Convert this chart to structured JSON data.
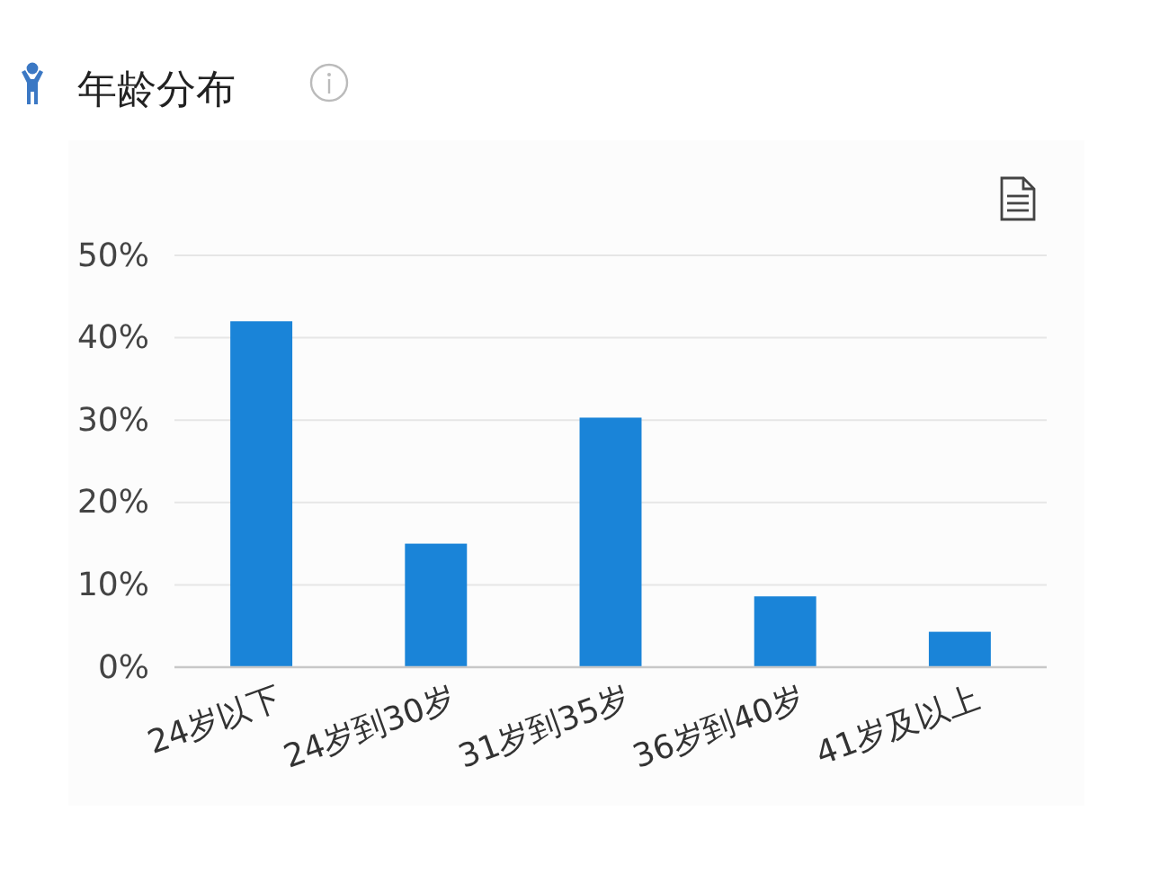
{
  "chart_data": {
    "type": "bar",
    "title": "年龄分布",
    "categories": [
      "24岁以下",
      "24岁到30岁",
      "31岁到35岁",
      "36岁到40岁",
      "41岁及以上"
    ],
    "values": [
      42,
      15,
      30.3,
      8.6,
      4.3
    ],
    "color": "#1a84d8",
    "ylim": [
      0,
      50
    ],
    "yticks": [
      {
        "value": 0,
        "label": "0%"
      },
      {
        "value": 10,
        "label": "10%"
      },
      {
        "value": 20,
        "label": "20%"
      },
      {
        "value": 30,
        "label": "30%"
      },
      {
        "value": 40,
        "label": "40%"
      },
      {
        "value": 50,
        "label": "50%"
      }
    ],
    "grid": "y"
  }
}
